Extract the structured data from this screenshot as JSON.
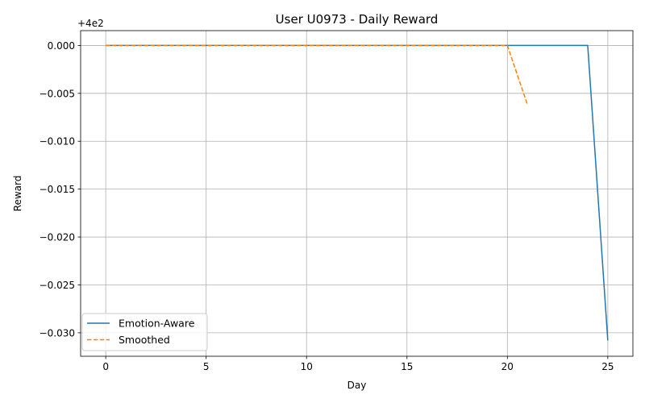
{
  "chart_data": {
    "type": "line",
    "title": "User U0973 - Daily Reward",
    "xlabel": "Day",
    "ylabel": "Reward",
    "offset_label": "+4e2",
    "xlim": [
      -1.25,
      26.25
    ],
    "ylim": [
      -0.03245,
      0.00155
    ],
    "xticks": [
      0,
      5,
      10,
      15,
      20,
      25
    ],
    "yticks": [
      0.0,
      -0.005,
      -0.01,
      -0.015,
      -0.02,
      -0.025,
      -0.03
    ],
    "ytick_labels": [
      "0.000",
      "−0.005",
      "−0.010",
      "−0.015",
      "−0.020",
      "−0.025",
      "−0.030"
    ],
    "grid": true,
    "legend_position": "lower-left",
    "series": [
      {
        "name": "Emotion-Aware",
        "color": "#1f77b4",
        "style": "solid",
        "x": [
          0,
          1,
          2,
          3,
          4,
          5,
          6,
          7,
          8,
          9,
          10,
          11,
          12,
          13,
          14,
          15,
          16,
          17,
          18,
          19,
          20,
          21,
          22,
          23,
          24,
          25
        ],
        "y": [
          0,
          0,
          0,
          0,
          0,
          0,
          0,
          0,
          0,
          0,
          0,
          0,
          0,
          0,
          0,
          0,
          0,
          0,
          0,
          0,
          0,
          0,
          0,
          0,
          0,
          -0.0308
        ]
      },
      {
        "name": "Smoothed",
        "color": "#ff7f0e",
        "style": "dashed",
        "x": [
          0,
          1,
          2,
          3,
          4,
          5,
          6,
          7,
          8,
          9,
          10,
          11,
          12,
          13,
          14,
          15,
          16,
          17,
          18,
          19,
          20,
          21
        ],
        "y": [
          0,
          0,
          0,
          0,
          0,
          0,
          0,
          0,
          0,
          0,
          0,
          0,
          0,
          0,
          0,
          0,
          0,
          0,
          0,
          0,
          0,
          -0.0062
        ]
      }
    ]
  }
}
